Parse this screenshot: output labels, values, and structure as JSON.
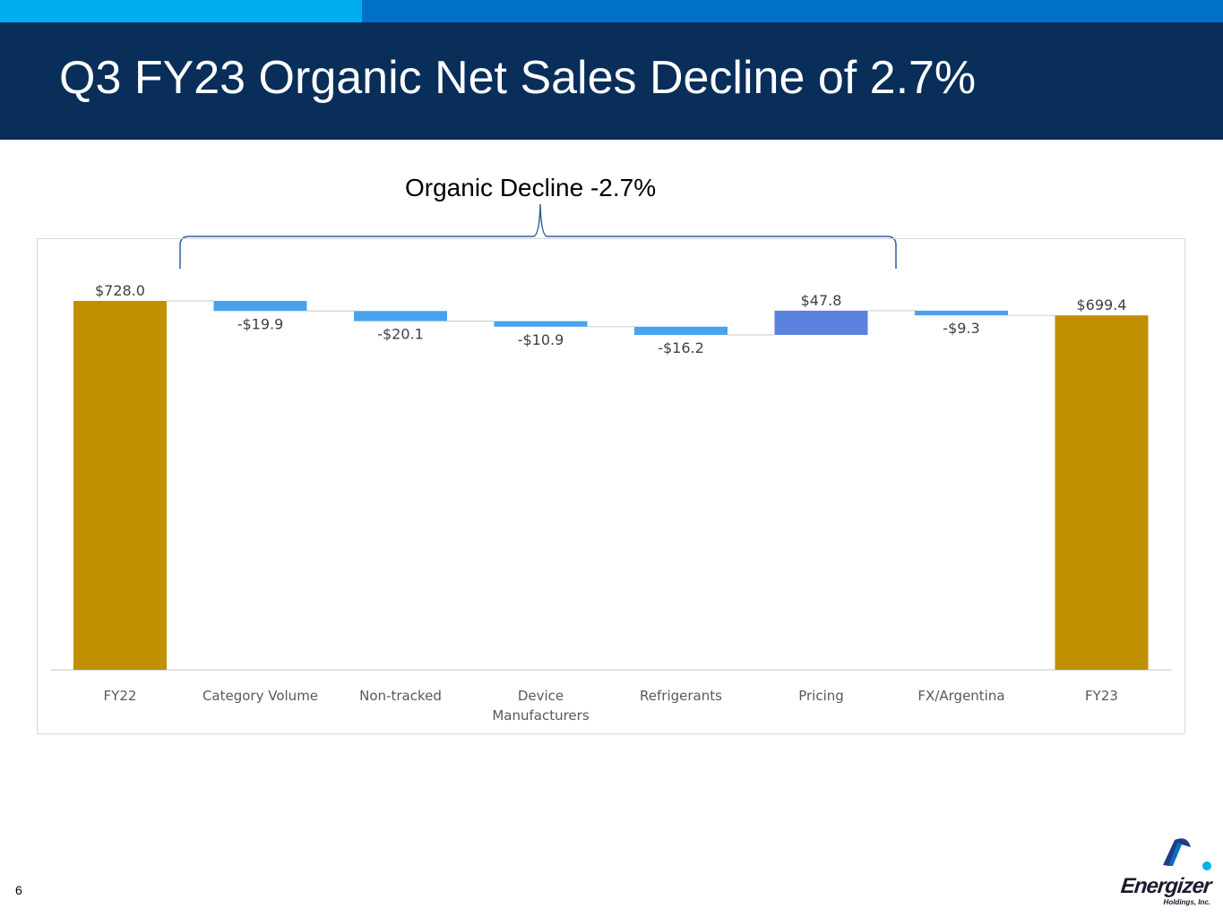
{
  "slide": {
    "title": "Q3 FY23 Organic Net Sales Decline of 2.7%",
    "annotation": "Organic Decline -2.7%",
    "page_number": "6",
    "logo": {
      "word": "Energizer",
      "sub": "Holdings, Inc."
    }
  },
  "colors": {
    "topbar_light": "#00adef",
    "topbar_dark": "#0071c5",
    "header": "#082e59",
    "total_bar": "#bf9000",
    "decrease_bar": "#47a3ee",
    "increase_bar": "#5b82dc",
    "bracket": "#2e5fa0"
  },
  "chart_data": {
    "type": "bar",
    "subtype": "waterfall",
    "categories": [
      "FY22",
      "Category Volume",
      "Non-tracked",
      "Device Manufacturers",
      "Refrigerants",
      "Pricing",
      "FX/Argentina",
      "FY23"
    ],
    "values": [
      728.0,
      -19.9,
      -20.1,
      -10.9,
      -16.2,
      47.8,
      -9.3,
      699.4
    ],
    "labels": [
      "$728.0",
      "-$19.9",
      "-$20.1",
      "-$10.9",
      "-$16.2",
      "$47.8",
      "-$9.3",
      "$699.4"
    ],
    "kinds": [
      "total",
      "decrease",
      "decrease",
      "decrease",
      "decrease",
      "increase",
      "decrease",
      "total"
    ],
    "title": "",
    "xlabel": "",
    "ylabel": "",
    "grid": false,
    "legend": "none"
  }
}
